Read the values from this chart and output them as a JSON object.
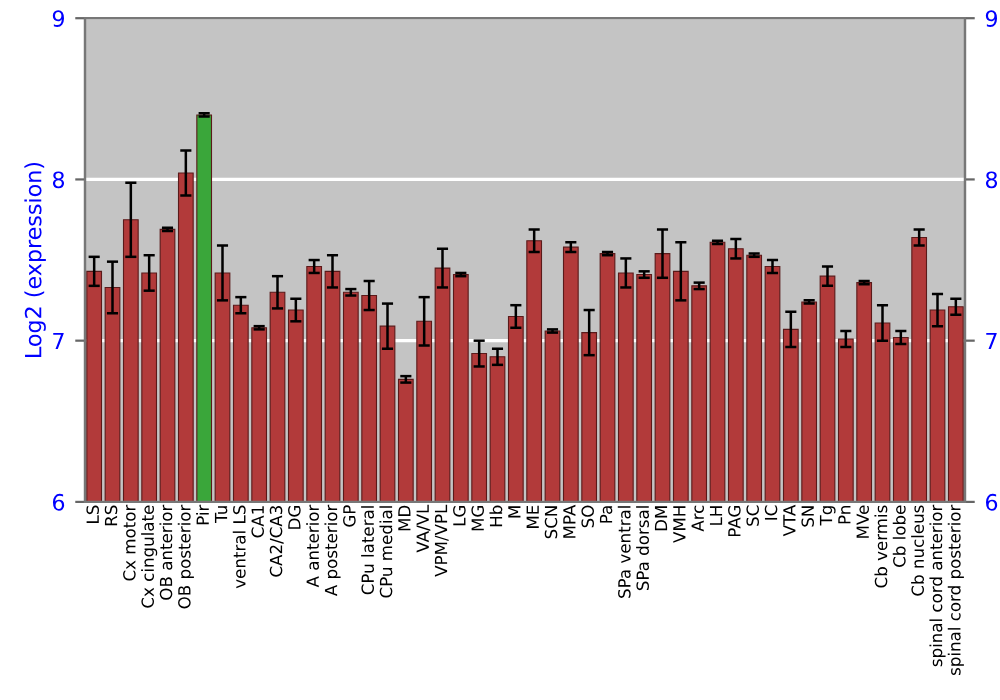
{
  "chart_data": {
    "type": "bar",
    "ylabel": "Log2 (expression)",
    "categories": [
      "LS",
      "RS",
      "Cx motor",
      "Cx cingulate",
      "OB anterior",
      "OB posterior",
      "Pir",
      "Tu",
      "ventral LS",
      "CA1",
      "CA2/CA3",
      "DG",
      "A anterior",
      "A posterior",
      "GP",
      "CPu lateral",
      "CPu medial",
      "MD",
      "VA/VL",
      "VPM/VPL",
      "LG",
      "MG",
      "Hb",
      "M",
      "ME",
      "SCN",
      "MPA",
      "SO",
      "Pa",
      "SPa ventral",
      "SPa dorsal",
      "DM",
      "VMH",
      "Arc",
      "LH",
      "PAG",
      "SC",
      "IC",
      "VTA",
      "SN",
      "Tg",
      "Pn",
      "MVe",
      "Cb vermis",
      "Cb lobe",
      "Cb nucleus",
      "spinal cord anterior",
      "spinal cord posterior"
    ],
    "values": [
      7.43,
      7.33,
      7.75,
      7.42,
      7.69,
      8.04,
      8.4,
      7.42,
      7.22,
      7.08,
      7.3,
      7.19,
      7.46,
      7.43,
      7.3,
      7.28,
      7.09,
      6.76,
      7.12,
      7.45,
      7.41,
      6.92,
      6.9,
      7.15,
      7.62,
      7.06,
      7.58,
      7.05,
      7.54,
      7.42,
      7.41,
      7.54,
      7.43,
      7.34,
      7.61,
      7.57,
      7.53,
      7.46,
      7.07,
      7.24,
      7.4,
      7.01,
      7.36,
      7.11,
      7.02,
      7.64,
      7.19,
      7.21
    ],
    "errors": [
      0.09,
      0.16,
      0.23,
      0.11,
      0.01,
      0.14,
      0.01,
      0.17,
      0.05,
      0.01,
      0.1,
      0.07,
      0.04,
      0.1,
      0.02,
      0.09,
      0.14,
      0.02,
      0.15,
      0.12,
      0.01,
      0.08,
      0.05,
      0.07,
      0.07,
      0.01,
      0.03,
      0.14,
      0.01,
      0.09,
      0.02,
      0.15,
      0.18,
      0.02,
      0.01,
      0.06,
      0.01,
      0.04,
      0.11,
      0.01,
      0.06,
      0.05,
      0.01,
      0.11,
      0.04,
      0.05,
      0.1,
      0.05
    ],
    "colors": [
      "#b23a3a",
      "#b23a3a",
      "#b23a3a",
      "#b23a3a",
      "#b23a3a",
      "#b23a3a",
      "#3aa63a",
      "#b23a3a",
      "#b23a3a",
      "#b23a3a",
      "#b23a3a",
      "#b23a3a",
      "#b23a3a",
      "#b23a3a",
      "#b23a3a",
      "#b23a3a",
      "#b23a3a",
      "#b23a3a",
      "#b23a3a",
      "#b23a3a",
      "#b23a3a",
      "#b23a3a",
      "#b23a3a",
      "#b23a3a",
      "#b23a3a",
      "#b23a3a",
      "#b23a3a",
      "#b23a3a",
      "#b23a3a",
      "#b23a3a",
      "#b23a3a",
      "#b23a3a",
      "#b23a3a",
      "#b23a3a",
      "#b23a3a",
      "#b23a3a",
      "#b23a3a",
      "#b23a3a",
      "#b23a3a",
      "#b23a3a",
      "#b23a3a",
      "#b23a3a",
      "#b23a3a",
      "#b23a3a",
      "#b23a3a",
      "#b23a3a",
      "#b23a3a",
      "#b23a3a"
    ],
    "ylim": [
      6,
      9
    ],
    "yticks": [
      6,
      7,
      8,
      9
    ],
    "y2lim": [
      6,
      9
    ],
    "y2ticks": [
      6,
      7,
      8,
      9
    ],
    "grid": "y",
    "legend": false
  }
}
